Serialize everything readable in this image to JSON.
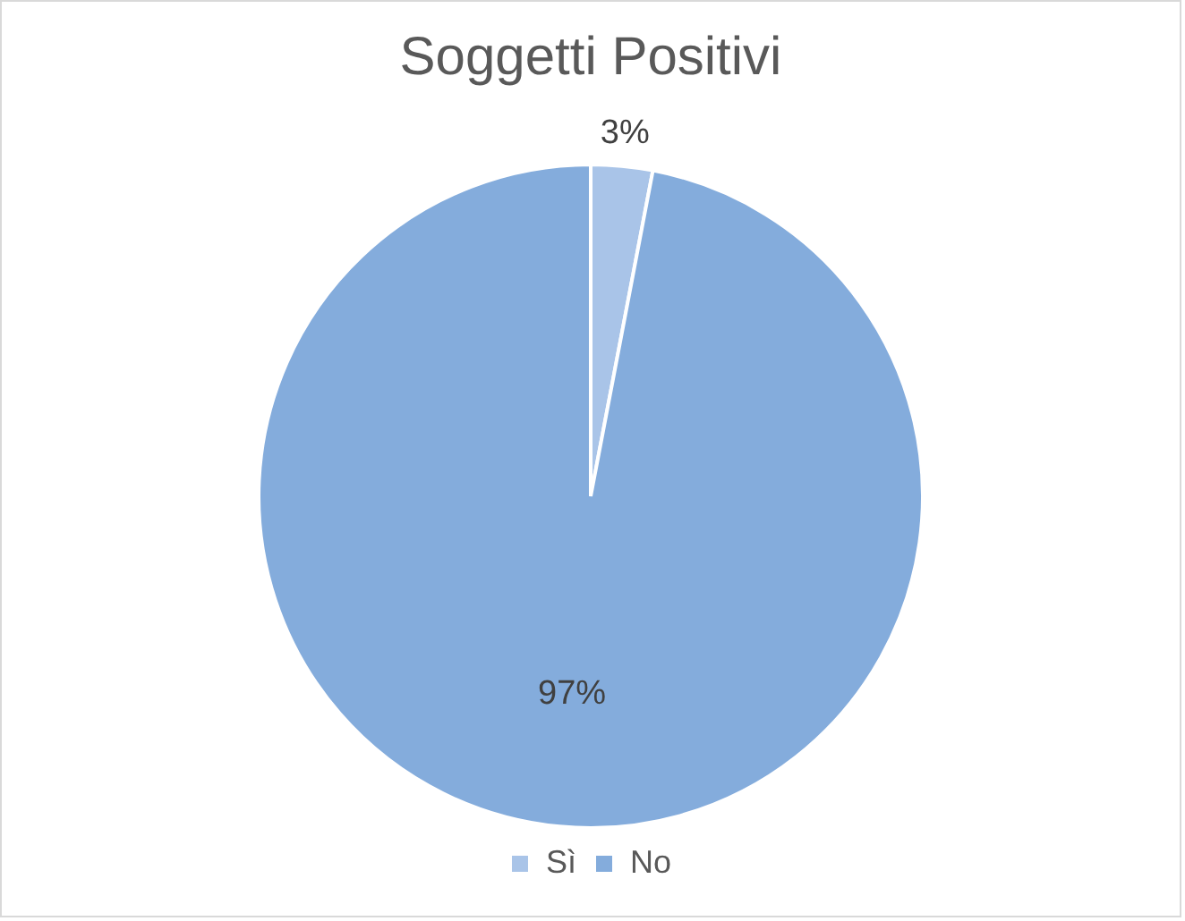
{
  "chart_data": {
    "type": "pie",
    "title": "Soggetti Positivi",
    "categories": [
      "Sì",
      "No"
    ],
    "values": [
      3,
      97
    ],
    "colors": [
      "#a9c4e8",
      "#84acdc"
    ],
    "value_labels": [
      "3%",
      "97%"
    ],
    "legend": "bottom"
  }
}
